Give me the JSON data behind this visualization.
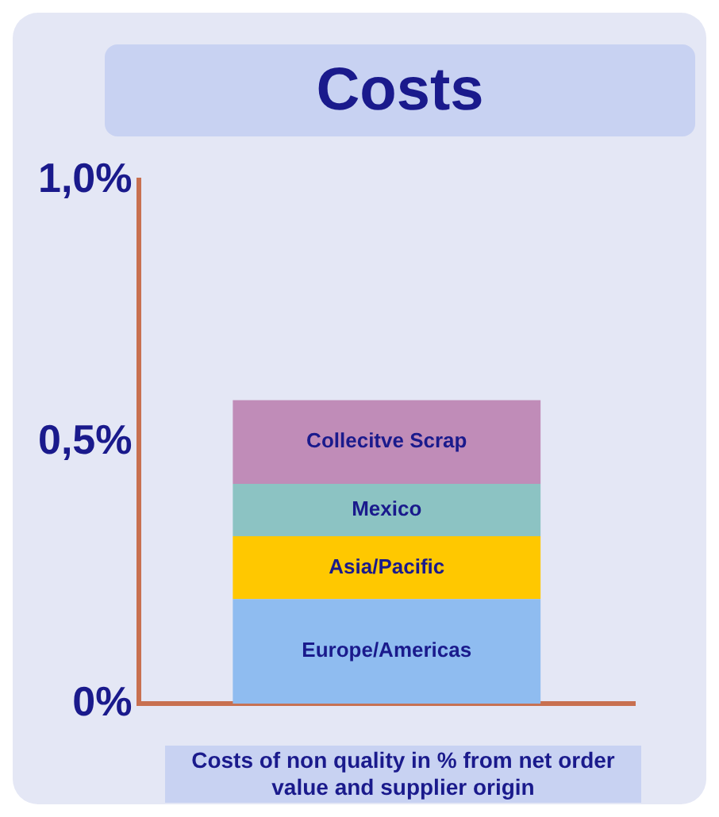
{
  "chart_data": {
    "type": "bar",
    "title": "Costs",
    "xlabel": "Costs of non quality in % from net order value and supplier origin",
    "categories": [
      null
    ],
    "stacked": true,
    "legend": false,
    "grid": false,
    "series": [
      {
        "name": "Europe/Americas",
        "color": "#8fbcf0",
        "values": [
          0.2
        ]
      },
      {
        "name": "Asia/Pacific",
        "color": "#ffc800",
        "values": [
          0.12
        ]
      },
      {
        "name": "Mexico",
        "color": "#8cc3c3",
        "values": [
          0.1
        ]
      },
      {
        "name": "Collecitve Scrap",
        "color": "#c08cb8",
        "values": [
          0.16
        ]
      }
    ],
    "ylim": [
      0,
      1
    ],
    "yticks": [
      {
        "value": 0,
        "label": "0%"
      },
      {
        "value": 0.5,
        "label": "0,5%"
      },
      {
        "value": 1,
        "label": "1,0%"
      }
    ]
  }
}
